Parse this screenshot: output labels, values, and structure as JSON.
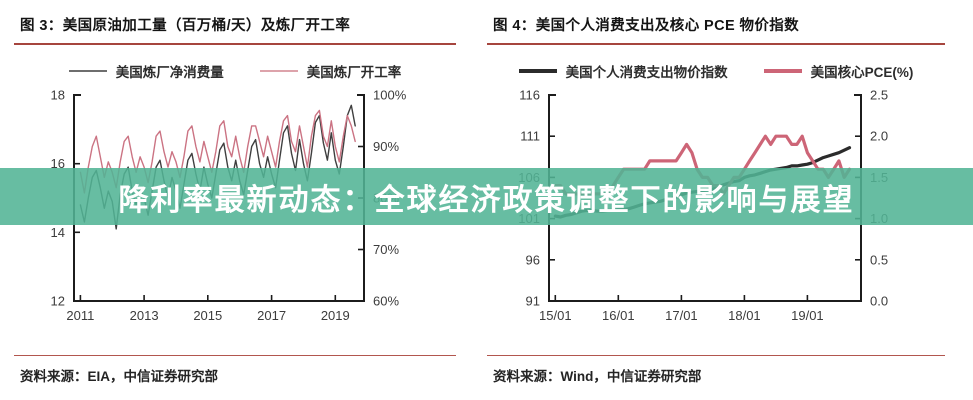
{
  "banner": {
    "text": "降利率最新动态：全球经济政策调整下的影响与展望",
    "bg_color": "rgba(82,180,149,0.88)",
    "text_color": "#ffffff"
  },
  "panels": [
    {
      "title": "图 3：美国原油加工量（百万桶/天）及炼厂开工率",
      "legend": [
        {
          "label": "美国炼厂净消费量",
          "color": "#6e6e6e"
        },
        {
          "label": "美国炼厂开工率",
          "color": "#dda3ab"
        }
      ],
      "source": "资料来源：EIA，中信证券研究部"
    },
    {
      "title": "图 4：美国个人消费支出及核心 PCE 物价指数",
      "legend": [
        {
          "label": "美国个人消费支出物价指数",
          "color": "#2b2b2b"
        },
        {
          "label": "美国核心PCE(%)",
          "color": "#cd6577"
        }
      ],
      "source": "资料来源：Wind，中信证券研究部"
    }
  ],
  "chart_data": [
    {
      "type": "line",
      "title": "美国原油加工量（百万桶/天）及炼厂开工率",
      "x_axis": {
        "min": 2010.8,
        "max": 2019.9,
        "ticks": [
          2011,
          2013,
          2015,
          2017,
          2019
        ],
        "tick_labels": [
          "2011",
          "2013",
          "2015",
          "2017",
          "2019"
        ]
      },
      "y_left": {
        "min": 12,
        "max": 18,
        "ticks": [
          12,
          14,
          16,
          18
        ],
        "tick_labels": [
          "12",
          "14",
          "16",
          "18"
        ]
      },
      "y_right": {
        "min": 60,
        "max": 100,
        "ticks": [
          60,
          70,
          80,
          90,
          100
        ],
        "tick_labels": [
          "60%",
          "70%",
          "80%",
          "90%",
          "100%"
        ]
      },
      "x": [
        2011.0,
        2011.125,
        2011.25,
        2011.375,
        2011.5,
        2011.625,
        2011.75,
        2011.875,
        2012.0,
        2012.125,
        2012.25,
        2012.375,
        2012.5,
        2012.625,
        2012.75,
        2012.875,
        2013.0,
        2013.125,
        2013.25,
        2013.375,
        2013.5,
        2013.625,
        2013.75,
        2013.875,
        2014.0,
        2014.125,
        2014.25,
        2014.375,
        2014.5,
        2014.625,
        2014.75,
        2014.875,
        2015.0,
        2015.125,
        2015.25,
        2015.375,
        2015.5,
        2015.625,
        2015.75,
        2015.875,
        2016.0,
        2016.125,
        2016.25,
        2016.375,
        2016.5,
        2016.625,
        2016.75,
        2016.875,
        2017.0,
        2017.125,
        2017.25,
        2017.375,
        2017.5,
        2017.625,
        2017.75,
        2017.875,
        2018.0,
        2018.125,
        2018.25,
        2018.375,
        2018.5,
        2018.625,
        2018.75,
        2018.875,
        2019.0,
        2019.125,
        2019.25,
        2019.375,
        2019.5,
        2019.625
      ],
      "series": [
        {
          "name": "美国炼厂净消费量",
          "axis": "left",
          "color": "#3f3f3f",
          "width": 1.4,
          "y": [
            14.8,
            14.3,
            15.0,
            15.6,
            15.8,
            15.3,
            14.7,
            15.2,
            14.9,
            14.1,
            15.1,
            15.7,
            15.9,
            15.2,
            14.8,
            15.3,
            15.0,
            14.5,
            15.2,
            15.9,
            16.1,
            15.5,
            15.0,
            15.6,
            15.2,
            14.7,
            15.4,
            16.1,
            16.3,
            15.7,
            15.2,
            15.9,
            15.4,
            15.0,
            15.7,
            16.4,
            16.6,
            15.9,
            15.5,
            16.1,
            15.5,
            15.1,
            15.8,
            16.5,
            16.7,
            16.0,
            15.6,
            16.2,
            15.7,
            15.3,
            16.1,
            16.9,
            17.1,
            16.3,
            15.8,
            16.7,
            16.0,
            15.5,
            16.3,
            17.2,
            17.4,
            16.6,
            16.1,
            16.9,
            16.1,
            15.7,
            16.5,
            17.4,
            17.7,
            17.1
          ]
        },
        {
          "name": "美国炼厂开工率",
          "axis": "right",
          "color": "#cb7383",
          "width": 1.4,
          "y": [
            85,
            81,
            86,
            90,
            92,
            88,
            84,
            87,
            85,
            82,
            87,
            91,
            92,
            88,
            85,
            88,
            86,
            83,
            87,
            92,
            93,
            89,
            86,
            89,
            87,
            84,
            88,
            93,
            94,
            90,
            87,
            91,
            88,
            85,
            89,
            94,
            95,
            90,
            88,
            92,
            88,
            85,
            90,
            94,
            94,
            91,
            88,
            92,
            89,
            86,
            91,
            95,
            96,
            91,
            89,
            94,
            90,
            86,
            92,
            96,
            97,
            92,
            90,
            95,
            90,
            87,
            92,
            96,
            94,
            91
          ]
        }
      ]
    },
    {
      "type": "line",
      "title": "美国个人消费支出及核心 PCE 物价指数",
      "x_axis": {
        "min": 2014.9,
        "max": 2019.85,
        "ticks": [
          2015,
          2016,
          2017,
          2018,
          2019
        ],
        "tick_labels": [
          "15/01",
          "16/01",
          "17/01",
          "18/01",
          "19/01"
        ]
      },
      "y_left": {
        "min": 91,
        "max": 116,
        "ticks": [
          91,
          96,
          101,
          106,
          111,
          116
        ],
        "tick_labels": [
          "91",
          "96",
          "101",
          "106",
          "111",
          "116"
        ]
      },
      "y_right": {
        "min": 0,
        "max": 2.5,
        "ticks": [
          0,
          0.5,
          1.0,
          1.5,
          2.0,
          2.5
        ],
        "tick_labels": [
          "0.0",
          "0.5",
          "1.0",
          "1.5",
          "2.0",
          "2.5"
        ]
      },
      "x": [
        2015.0,
        2015.083,
        2015.167,
        2015.25,
        2015.333,
        2015.417,
        2015.5,
        2015.583,
        2015.667,
        2015.75,
        2015.833,
        2015.917,
        2016.0,
        2016.083,
        2016.167,
        2016.25,
        2016.333,
        2016.417,
        2016.5,
        2016.583,
        2016.667,
        2016.75,
        2016.833,
        2016.917,
        2017.0,
        2017.083,
        2017.167,
        2017.25,
        2017.333,
        2017.417,
        2017.5,
        2017.583,
        2017.667,
        2017.75,
        2017.833,
        2017.917,
        2018.0,
        2018.083,
        2018.167,
        2018.25,
        2018.333,
        2018.417,
        2018.5,
        2018.583,
        2018.667,
        2018.75,
        2018.833,
        2018.917,
        2019.0,
        2019.083,
        2019.167,
        2019.25,
        2019.333,
        2019.417,
        2019.5,
        2019.583,
        2019.667
      ],
      "series": [
        {
          "name": "美国个人消费支出物价指数",
          "axis": "left",
          "color": "#2b2b2b",
          "width": 3.2,
          "y": [
            101.3,
            101.2,
            101.4,
            101.5,
            101.7,
            101.9,
            102.0,
            102.0,
            101.9,
            101.9,
            102.0,
            102.0,
            102.1,
            102.1,
            102.2,
            102.4,
            102.6,
            102.8,
            102.9,
            103.0,
            103.1,
            103.3,
            103.4,
            103.6,
            103.9,
            104.1,
            104.2,
            104.3,
            104.4,
            104.5,
            104.6,
            104.8,
            105.1,
            105.3,
            105.5,
            105.6,
            106.0,
            106.2,
            106.3,
            106.5,
            106.7,
            106.9,
            107.0,
            107.1,
            107.2,
            107.4,
            107.4,
            107.5,
            107.6,
            107.8,
            108.1,
            108.4,
            108.6,
            108.8,
            109.0,
            109.3,
            109.6
          ]
        },
        {
          "name": "美国核心PCE(%)",
          "axis": "right",
          "color": "#cd6577",
          "width": 3.2,
          "y": [
            1.4,
            1.4,
            1.3,
            1.3,
            1.3,
            1.3,
            1.3,
            1.3,
            1.3,
            1.3,
            1.3,
            1.4,
            1.5,
            1.6,
            1.6,
            1.6,
            1.6,
            1.6,
            1.7,
            1.7,
            1.7,
            1.7,
            1.7,
            1.7,
            1.8,
            1.9,
            1.8,
            1.6,
            1.5,
            1.5,
            1.4,
            1.4,
            1.3,
            1.4,
            1.5,
            1.5,
            1.6,
            1.7,
            1.8,
            1.9,
            2.0,
            1.9,
            2.0,
            2.0,
            2.0,
            1.9,
            1.9,
            2.0,
            1.8,
            1.7,
            1.6,
            1.6,
            1.5,
            1.6,
            1.7,
            1.5,
            1.6
          ]
        }
      ]
    }
  ]
}
